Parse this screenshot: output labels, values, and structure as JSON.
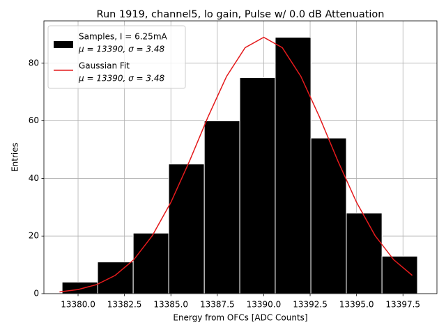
{
  "chart_data": {
    "type": "histogram",
    "title": "Run 1919, channel5, lo gain, Pulse w/ 0.0 dB Attenuation",
    "xlabel": "Energy from OFCs [ADC Counts]",
    "ylabel": "Entries",
    "name": "Samples, I = 6.25mA",
    "stats": "μ = 13390, σ = 3.48",
    "color": "#000000",
    "bins": [
      13379.14,
      13381.05,
      13382.97,
      13384.88,
      13386.8,
      13388.71,
      13390.62,
      13392.54,
      13394.45,
      13396.37,
      13398.28
    ],
    "counts": [
      4,
      11,
      21,
      45,
      60,
      75,
      89,
      54,
      28,
      13
    ],
    "fit": {
      "type": "line",
      "name": "Gaussian Fit",
      "stats": "μ = 13390, σ = 3.48",
      "color": "#e41a1c",
      "x": [
        13379,
        13380,
        13381,
        13382,
        13383,
        13384,
        13385,
        13386,
        13387,
        13388,
        13389,
        13390,
        13391,
        13392,
        13393,
        13394,
        13395,
        13396,
        13397,
        13398
      ],
      "values": [
        0.6,
        1.43,
        3.14,
        6.34,
        11.77,
        20.13,
        31.7,
        45.97,
        61.38,
        75.45,
        85.4,
        89,
        85.4,
        75.45,
        61.38,
        45.97,
        31.7,
        20.13,
        11.77,
        6.34
      ]
    },
    "xlim": [
      13378.16,
      13399.33
    ],
    "ylim": [
      0,
      94.7
    ],
    "xticks": [
      {
        "value": 13380,
        "label": "13380.0"
      },
      {
        "value": 13382.5,
        "label": "13382.5"
      },
      {
        "value": 13385,
        "label": "13385.0"
      },
      {
        "value": 13387.5,
        "label": "13387.5"
      },
      {
        "value": 13390,
        "label": "13390.0"
      },
      {
        "value": 13392.5,
        "label": "13392.5"
      },
      {
        "value": 13395,
        "label": "13395.0"
      },
      {
        "value": 13397.5,
        "label": "13397.5"
      }
    ],
    "yticks": [
      0,
      20,
      40,
      60,
      80
    ],
    "grid": true,
    "legend": "upper left"
  }
}
